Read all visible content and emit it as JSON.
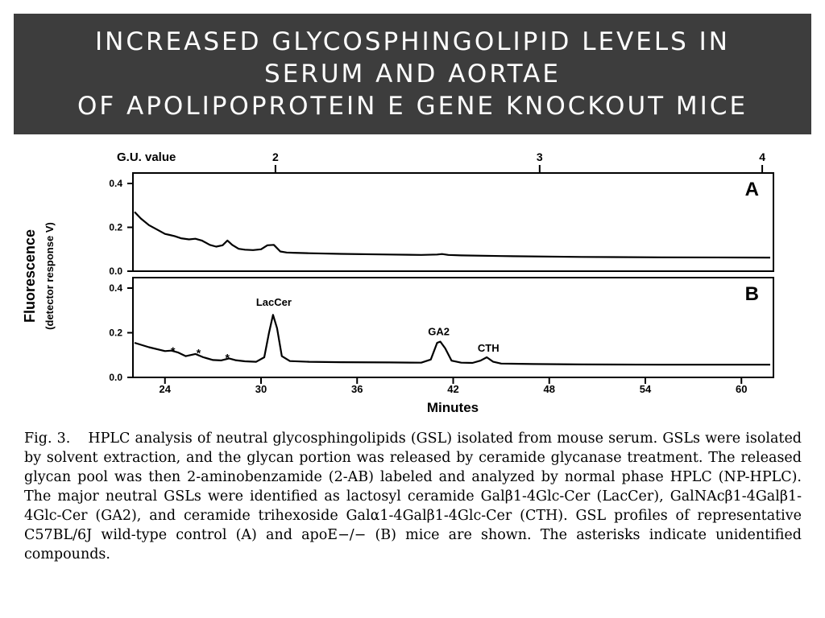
{
  "slide": {
    "title_lines": [
      "Increased Glycosphingolipid Levels in",
      "Serum and Aortae",
      "of Apolipoprotein E Gene Knockout Mice"
    ],
    "caption_label": "Fig.  3.",
    "caption_text": "HPLC analysis of neutral glycosphingolipids (GSL) isolated from mouse serum. GSLs were isolated by solvent extraction, and the glycan portion was released by ceramide glycanase treatment. The released glycan pool was then 2-aminobenzamide (2-AB) labeled and analyzed by normal phase HPLC (NP-HPLC). The major neutral GSLs were identified as lactosyl ceramide Galβ1-4Glc-Cer (LacCer), GalNAcβ1-4Galβ1-4Glc-Cer (GA2), and ceramide trihexoside Galα1-4Galβ1-4Glc-Cer (CTH). GSL profiles of representative C57BL/6J wild-type control (A) and apoE−/− (B) mice are shown. The asterisks indicate unidentified compounds."
  },
  "chart_data": [
    {
      "type": "line",
      "panel_label": "A",
      "ylabel": "Fluorescence",
      "ylabel_sub": "(detector response V)",
      "xlim": [
        22,
        62
      ],
      "ylim": [
        0,
        0.45
      ],
      "yticks": [
        0.0,
        0.2,
        0.4
      ],
      "ytick_labels": [
        "0.0",
        "0.2",
        "0.4"
      ],
      "top_axis_label": "G.U. value",
      "top_ticks": [
        {
          "x": 30.9,
          "label": "2"
        },
        {
          "x": 47.4,
          "label": "3"
        },
        {
          "x": 61.3,
          "label": "4"
        }
      ],
      "x": [
        22.1,
        22.5,
        23,
        23.5,
        24,
        24.3,
        24.6,
        25,
        25.5,
        25.9,
        26.3,
        26.8,
        27.2,
        27.6,
        27.9,
        28.2,
        28.6,
        29,
        29.5,
        30,
        30.4,
        30.8,
        31.2,
        31.6,
        32,
        33,
        35,
        38,
        40,
        41,
        41.3,
        41.7,
        42.5,
        45,
        50,
        55,
        61.8
      ],
      "y": [
        0.27,
        0.24,
        0.21,
        0.19,
        0.17,
        0.165,
        0.16,
        0.15,
        0.145,
        0.148,
        0.14,
        0.12,
        0.112,
        0.118,
        0.14,
        0.12,
        0.102,
        0.098,
        0.096,
        0.1,
        0.118,
        0.12,
        0.09,
        0.085,
        0.084,
        0.082,
        0.079,
        0.076,
        0.074,
        0.076,
        0.078,
        0.074,
        0.072,
        0.069,
        0.065,
        0.063,
        0.062
      ]
    },
    {
      "type": "line",
      "panel_label": "B",
      "xlabel": "Minutes",
      "xlim": [
        22,
        62
      ],
      "ylim": [
        0,
        0.42
      ],
      "xticks": [
        24,
        30,
        36,
        42,
        48,
        54,
        60
      ],
      "yticks": [
        0.0,
        0.2,
        0.4
      ],
      "ytick_labels": [
        "0.0",
        "0.2",
        "0.4"
      ],
      "x": [
        22.1,
        23,
        24,
        24.4,
        24.8,
        25.3,
        25.9,
        26.4,
        27,
        27.5,
        28,
        28.4,
        29,
        29.7,
        30.2,
        30.5,
        30.75,
        31,
        31.3,
        31.8,
        33,
        35,
        38,
        40,
        40.6,
        41,
        41.2,
        41.5,
        41.9,
        42.5,
        43.2,
        43.7,
        44.1,
        44.5,
        45,
        47,
        50,
        55,
        61.8
      ],
      "y": [
        0.155,
        0.135,
        0.118,
        0.12,
        0.112,
        0.095,
        0.105,
        0.09,
        0.078,
        0.076,
        0.085,
        0.077,
        0.072,
        0.07,
        0.09,
        0.2,
        0.28,
        0.22,
        0.095,
        0.073,
        0.07,
        0.068,
        0.067,
        0.066,
        0.08,
        0.155,
        0.16,
        0.13,
        0.075,
        0.066,
        0.065,
        0.075,
        0.09,
        0.07,
        0.062,
        0.06,
        0.058,
        0.057,
        0.057
      ],
      "annotations": [
        {
          "text": "LacCer",
          "x": 30.8,
          "y": 0.32
        },
        {
          "text": "GA2",
          "x": 41.1,
          "y": 0.19
        },
        {
          "text": "CTH",
          "x": 44.2,
          "y": 0.115
        },
        {
          "text": "*",
          "x": 24.5,
          "y": 0.13
        },
        {
          "text": "*",
          "x": 26.1,
          "y": 0.12
        },
        {
          "text": "*",
          "x": 27.9,
          "y": 0.1
        }
      ]
    }
  ]
}
